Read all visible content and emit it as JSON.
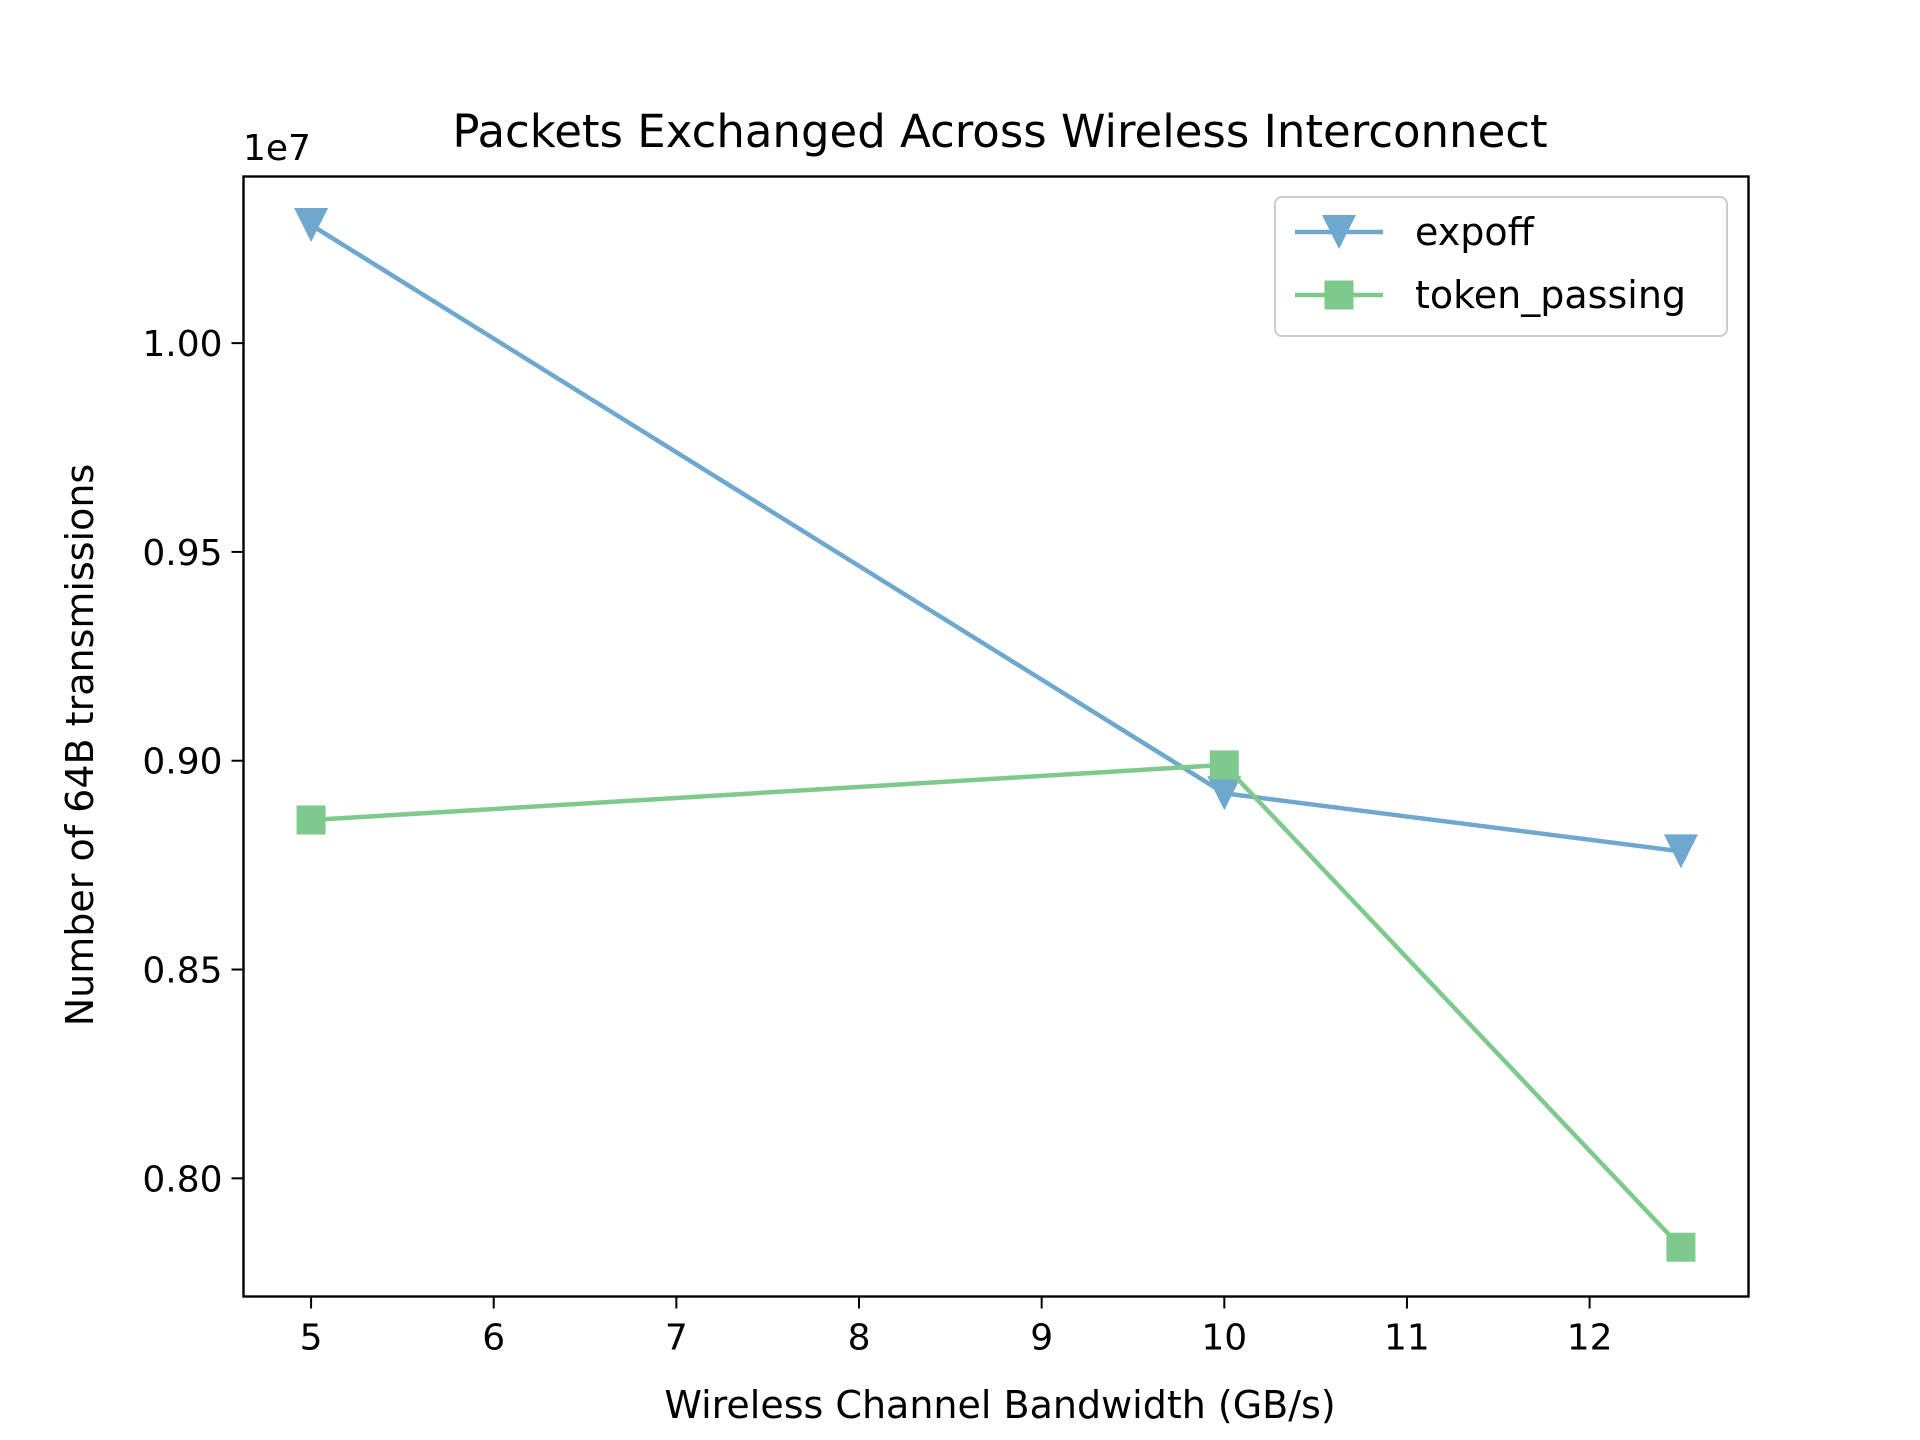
{
  "chart_data": {
    "type": "line",
    "title": "Packets Exchanged Across Wireless Interconnect",
    "xlabel": "Wireless Channel Bandwidth (GB/s)",
    "ylabel": "Number of 64B transmissions",
    "y_offset_label": "1e7",
    "y_scale_factor": 10000000,
    "xlim": [
      4.63,
      12.87
    ],
    "ylim": [
      0.7717,
      1.0399
    ],
    "xticks": [
      5,
      6,
      7,
      8,
      9,
      10,
      11,
      12
    ],
    "yticks": [
      0.8,
      0.85,
      0.9,
      0.95,
      1.0
    ],
    "ytick_labels": [
      "0.80",
      "0.85",
      "0.90",
      "0.95",
      "1.00"
    ],
    "grid": false,
    "legend_position": "top-right",
    "x": [
      5,
      10,
      12.5
    ],
    "series": [
      {
        "name": "expoff",
        "values": [
          1.0283,
          0.8922,
          0.8783
        ],
        "color": "#6fa8ce",
        "marker": "triangle-down"
      },
      {
        "name": "token_passing",
        "values": [
          0.8858,
          0.899,
          0.7835
        ],
        "color": "#7ec98c",
        "marker": "square"
      }
    ]
  }
}
